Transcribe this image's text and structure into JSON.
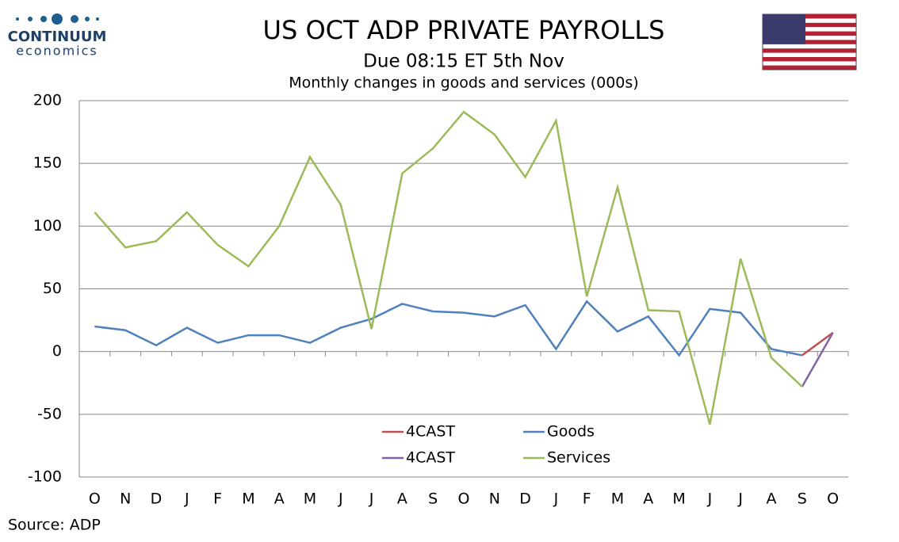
{
  "logo": {
    "name": "CONTINUUM",
    "sub": "economics"
  },
  "source": "Source: ADP",
  "chart_data": {
    "type": "line",
    "title": "US OCT ADP PRIVATE PAYROLLS",
    "subtitle": "Due 08:15 ET 5th Nov",
    "subtitle2": "Monthly changes in goods and services (000s)",
    "categories": [
      "O",
      "N",
      "D",
      "J",
      "F",
      "M",
      "A",
      "M",
      "J",
      "J",
      "A",
      "S",
      "O",
      "N",
      "D",
      "J",
      "F",
      "M",
      "A",
      "M",
      "J",
      "J",
      "A",
      "S",
      "O"
    ],
    "series": [
      {
        "name": "4CAST",
        "color": "#c0504d",
        "values": [
          null,
          null,
          null,
          null,
          null,
          null,
          null,
          null,
          null,
          null,
          null,
          null,
          null,
          null,
          null,
          null,
          null,
          null,
          null,
          null,
          null,
          null,
          null,
          -3,
          15
        ]
      },
      {
        "name": "Goods",
        "color": "#4f81bd",
        "values": [
          20,
          17,
          5,
          19,
          7,
          13,
          13,
          7,
          19,
          26,
          38,
          32,
          31,
          28,
          37,
          2,
          40,
          16,
          28,
          -3,
          34,
          31,
          2,
          -3,
          null
        ]
      },
      {
        "name": "4CAST",
        "color": "#8064a2",
        "values": [
          null,
          null,
          null,
          null,
          null,
          null,
          null,
          null,
          null,
          null,
          null,
          null,
          null,
          null,
          null,
          null,
          null,
          null,
          null,
          null,
          null,
          null,
          null,
          -28,
          15
        ]
      },
      {
        "name": "Services",
        "color": "#9bbb59",
        "values": [
          111,
          83,
          88,
          111,
          85,
          68,
          100,
          155,
          117,
          18,
          142,
          162,
          191,
          173,
          139,
          184,
          44,
          131,
          33,
          32,
          -58,
          74,
          -5,
          -28,
          null
        ]
      }
    ],
    "ylim": [
      -100,
      200
    ],
    "yticks": [
      -100,
      -50,
      0,
      50,
      100,
      150,
      200
    ],
    "grid": true
  }
}
